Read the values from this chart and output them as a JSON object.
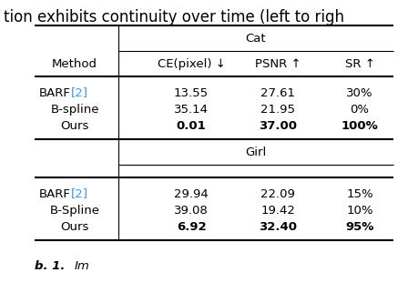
{
  "title_text": "tion exhibits continuity over time (left to righ",
  "col_header": [
    "Method",
    "CE(pixel) ↓",
    "PSNR ↑",
    "SR ↑"
  ],
  "group1_label": "Cat",
  "group2_label": "Girl",
  "rows_cat": [
    [
      "BARF[2]",
      "13.55",
      "27.61",
      "30%",
      false
    ],
    [
      "B-spline",
      "35.14",
      "21.95",
      "0%",
      false
    ],
    [
      "Ours",
      "0.01",
      "37.00",
      "100%",
      true
    ]
  ],
  "rows_girl": [
    [
      "BARF[2]",
      "29.94",
      "22.09",
      "15%",
      false
    ],
    [
      "B-Spline",
      "39.08",
      "19.42",
      "10%",
      false
    ],
    [
      "Ours",
      "6.92",
      "32.40",
      "95%",
      true
    ]
  ],
  "barf_color": "#3399ff",
  "bg_color": "#ffffff",
  "text_color": "#000000",
  "font_size": 9.5,
  "title_font_size": 12,
  "caption_font_size": 9.5
}
